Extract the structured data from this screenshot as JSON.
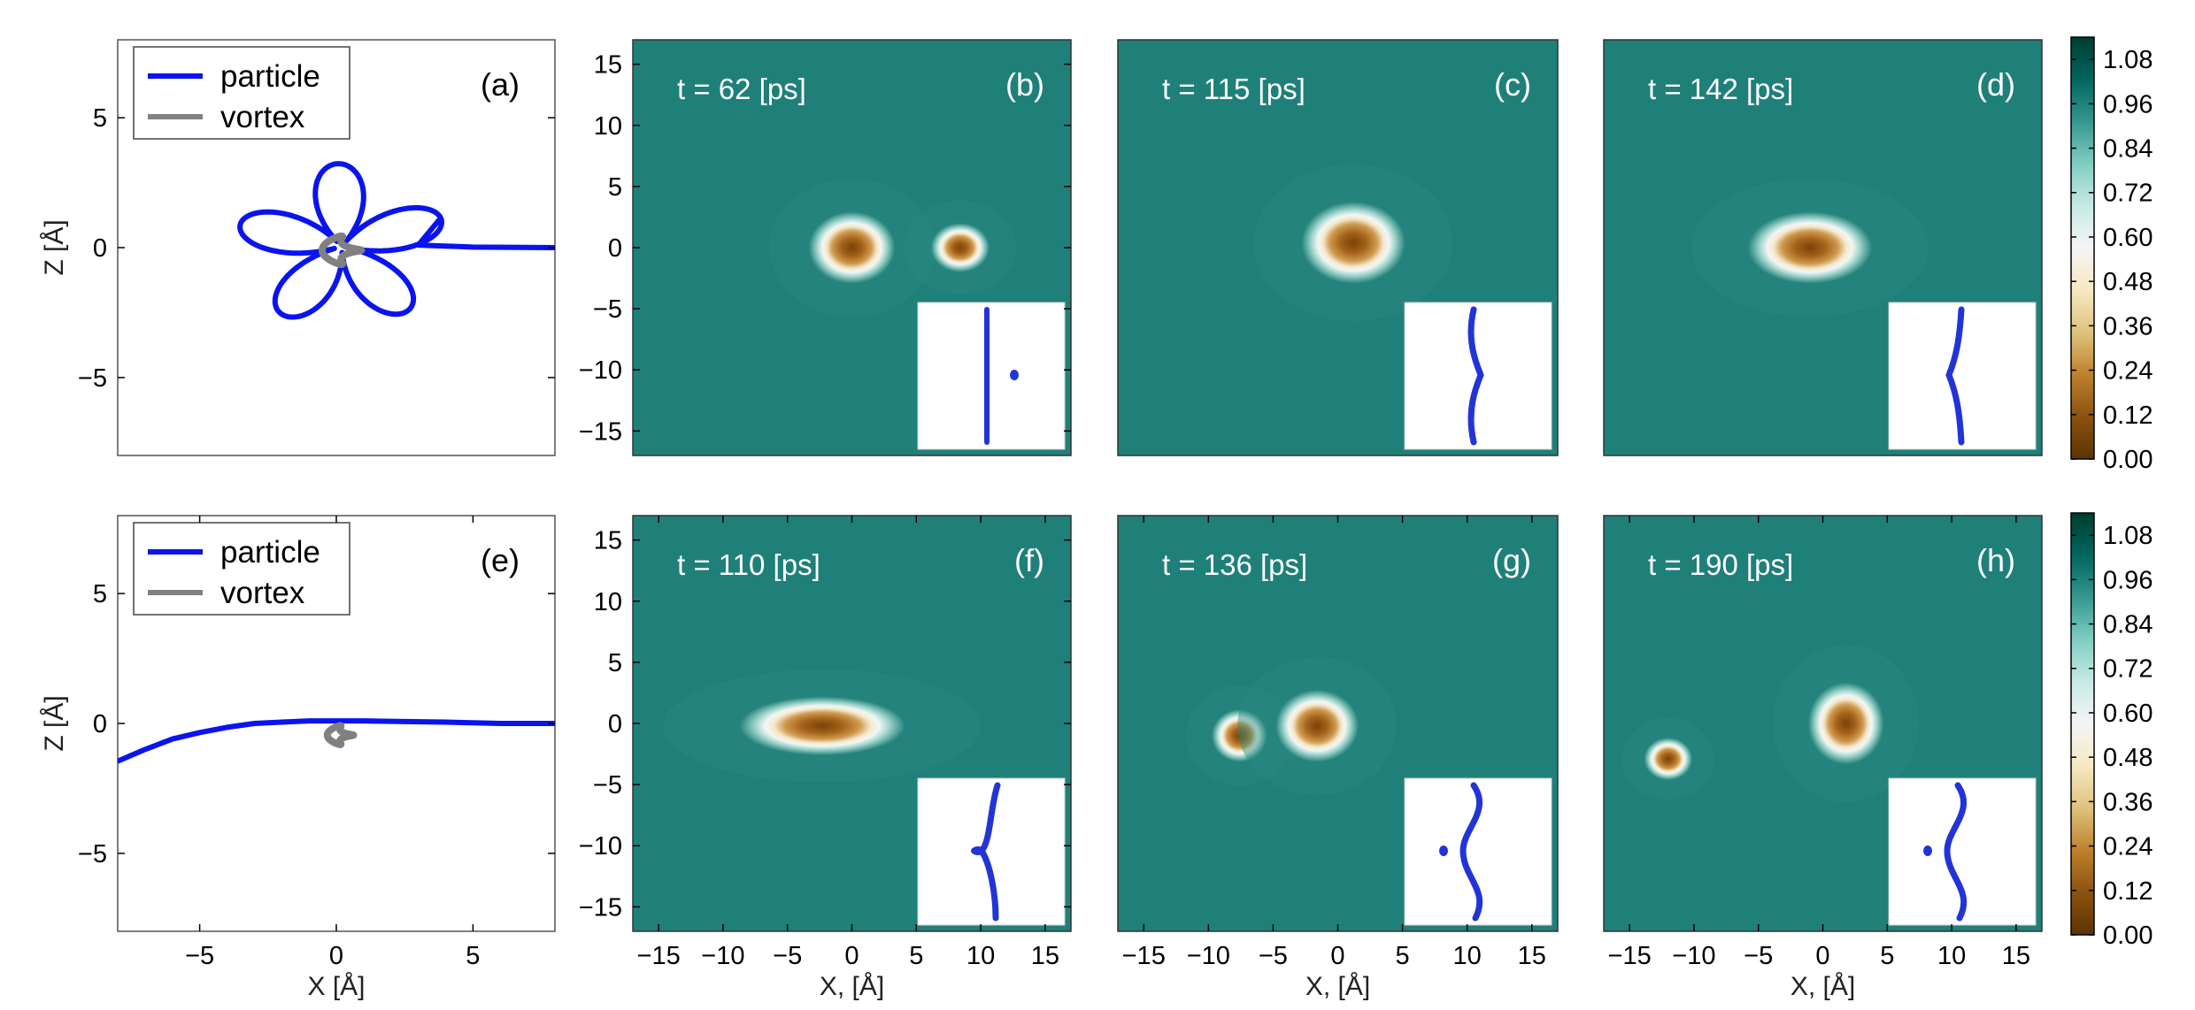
{
  "chart_data": [
    {
      "type": "line",
      "panel": "(a)",
      "row": 0,
      "xlim": [
        -8,
        8
      ],
      "ylim": [
        -8,
        8
      ],
      "yticks": [
        -5,
        0,
        5
      ],
      "ylabel": "Z [Å]",
      "legend": [
        "particle",
        "vortex"
      ],
      "legend_position": "top-left",
      "series": [
        {
          "name": "particle",
          "color": "#0a14ee",
          "kind": "flower"
        },
        {
          "name": "vortex",
          "color": "#808080",
          "kind": "knot"
        }
      ]
    },
    {
      "type": "heatmap",
      "panel": "(b)",
      "row": 0,
      "time_label": "t = 62 [ps]",
      "xlim": [
        -17,
        17
      ],
      "ylim": [
        -17,
        17
      ],
      "yticks": [
        -15,
        -10,
        -5,
        0,
        5,
        10,
        15
      ],
      "blobs": [
        {
          "x": 0,
          "z": 0,
          "rx": 2.5,
          "rz": 2.2
        },
        {
          "x": 8.4,
          "z": 0,
          "rx": 1.7,
          "rz": 1.5
        }
      ],
      "inset": {
        "vortex": "straight",
        "dot": true
      }
    },
    {
      "type": "heatmap",
      "panel": "(c)",
      "row": 0,
      "time_label": "t = 115 [ps]",
      "xlim": [
        -17,
        17
      ],
      "ylim": [
        -17,
        17
      ],
      "blobs": [
        {
          "x": 1.2,
          "z": 0.4,
          "rx": 3.0,
          "rz": 2.5
        }
      ],
      "inset": {
        "vortex": "kinked",
        "dot": false
      }
    },
    {
      "type": "heatmap",
      "panel": "(d)",
      "row": 0,
      "time_label": "t = 142 [ps]",
      "xlim": [
        -17,
        17
      ],
      "ylim": [
        -17,
        17
      ],
      "blobs": [
        {
          "x": -1.0,
          "z": 0,
          "rx": 3.6,
          "rz": 2.2
        }
      ],
      "inset": {
        "vortex": "bulged",
        "dot": false
      }
    },
    {
      "type": "line",
      "panel": "(e)",
      "row": 1,
      "xlim": [
        -8,
        8
      ],
      "ylim": [
        -8,
        8
      ],
      "xticks": [
        -5,
        0,
        5
      ],
      "yticks": [
        -5,
        0,
        5
      ],
      "xlabel": "X [Å]",
      "ylabel": "Z [Å]",
      "legend": [
        "particle",
        "vortex"
      ],
      "legend_position": "top-left",
      "series": [
        {
          "name": "particle",
          "color": "#0a14ee",
          "x": [
            -8.0,
            -7.0,
            -6.0,
            -5.0,
            -4.0,
            -3.0,
            -2.0,
            -1.0,
            0.0,
            1.0,
            2.0,
            4.0,
            6.0,
            8.0
          ],
          "z": [
            -1.45,
            -1.0,
            -0.6,
            -0.35,
            -0.15,
            0.0,
            0.05,
            0.1,
            0.1,
            0.1,
            0.08,
            0.05,
            0.0,
            0.0
          ]
        },
        {
          "name": "vortex",
          "color": "#808080",
          "kind": "knot"
        }
      ]
    },
    {
      "type": "heatmap",
      "panel": "(f)",
      "row": 1,
      "time_label": "t = 110 [ps]",
      "xlim": [
        -17,
        17
      ],
      "ylim": [
        -17,
        17
      ],
      "xticks": [
        -15,
        -10,
        -5,
        0,
        5,
        10,
        15
      ],
      "yticks": [
        -15,
        -10,
        -5,
        0,
        5,
        10,
        15
      ],
      "xlabel": "X, [Å]",
      "blobs": [
        {
          "x": -2.3,
          "z": -0.2,
          "rx": 4.8,
          "rz": 1.8
        }
      ],
      "inset": {
        "vortex": "pinned",
        "dot": false
      }
    },
    {
      "type": "heatmap",
      "panel": "(g)",
      "row": 1,
      "time_label": "t = 136 [ps]",
      "xlim": [
        -17,
        17
      ],
      "ylim": [
        -17,
        17
      ],
      "xticks": [
        -15,
        -10,
        -5,
        0,
        5,
        10,
        15
      ],
      "xlabel": "X, [Å]",
      "blobs": [
        {
          "x": -7.6,
          "z": -1.0,
          "rx": 1.6,
          "rz": 1.6
        },
        {
          "x": -1.6,
          "z": -0.2,
          "rx": 2.4,
          "rz": 2.2
        }
      ],
      "inset": {
        "vortex": "curved",
        "dot": true
      }
    },
    {
      "type": "heatmap",
      "panel": "(h)",
      "row": 1,
      "time_label": "t = 190 [ps]",
      "xlim": [
        -17,
        17
      ],
      "ylim": [
        -17,
        17
      ],
      "xticks": [
        -15,
        -10,
        -5,
        0,
        5,
        10,
        15
      ],
      "xlabel": "X, [Å]",
      "blobs": [
        {
          "x": -12.0,
          "z": -2.9,
          "rx": 1.4,
          "rz": 1.3
        },
        {
          "x": 1.8,
          "z": 0.0,
          "rx": 2.2,
          "rz": 2.5
        }
      ],
      "inset": {
        "vortex": "curved",
        "dot": true
      }
    }
  ],
  "colorbar": {
    "ticks": [
      "0.00",
      "0.12",
      "0.24",
      "0.36",
      "0.48",
      "0.60",
      "0.72",
      "0.84",
      "0.96",
      "1.08"
    ],
    "range": [
      0,
      1.14
    ],
    "colors": [
      "#5a3504",
      "#8c5110",
      "#bf812d",
      "#dfc27d",
      "#f6e8c3",
      "#f5f5f5",
      "#c7eae5",
      "#80cdc1",
      "#35978f",
      "#01665e",
      "#003c30"
    ]
  },
  "colors": {
    "background": "#1f8079",
    "particle": "#0a14ee",
    "vortex": "#808080",
    "inset_line": "#2334d6"
  }
}
